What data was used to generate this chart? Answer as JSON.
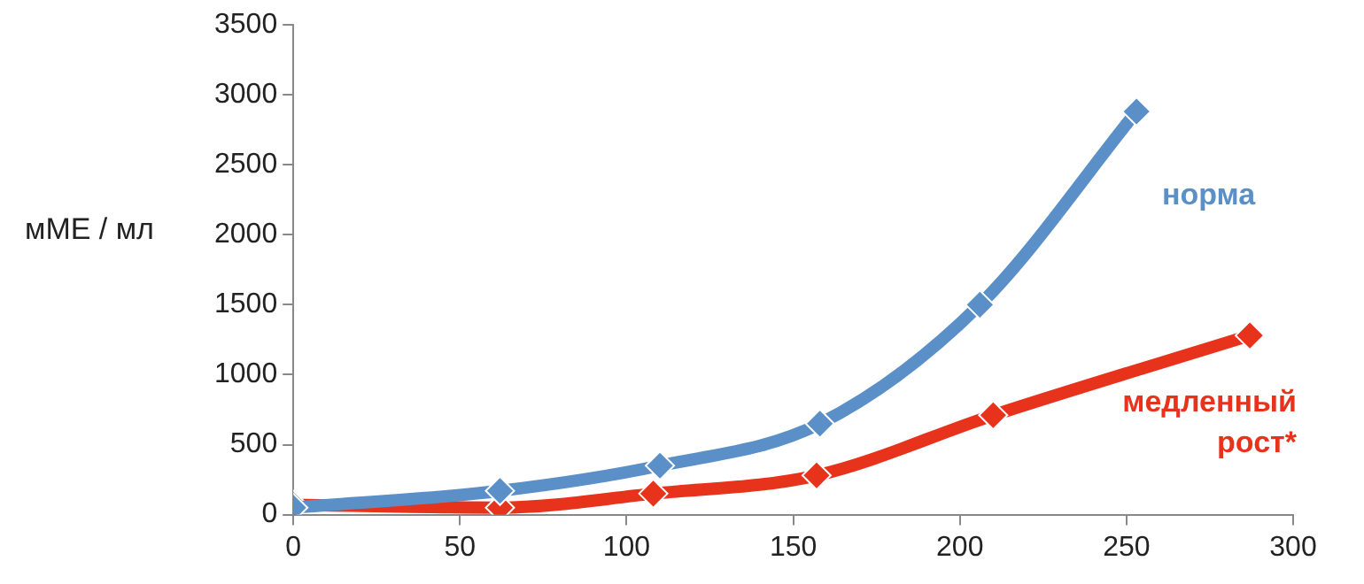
{
  "chart_data": {
    "type": "line",
    "ylabel": "мМЕ / мл",
    "xlim": [
      0,
      300
    ],
    "xticks": [
      0,
      50,
      100,
      150,
      200,
      250,
      300
    ],
    "ylim": [
      0,
      3500
    ],
    "yticks": [
      0,
      500,
      1000,
      1500,
      2000,
      2500,
      3000,
      3500
    ],
    "grid": false,
    "legend": false,
    "marker": "diamond",
    "line_style": "solid",
    "series": [
      {
        "name": "норма",
        "color": "#5b8fc7",
        "x": [
          0,
          62,
          110,
          158,
          206,
          253
        ],
        "values": [
          50,
          170,
          350,
          650,
          1500,
          2880
        ]
      },
      {
        "name": "медленный рост*",
        "color": "#e8331c",
        "x": [
          0,
          62,
          108,
          157,
          210,
          287
        ],
        "values": [
          70,
          50,
          150,
          280,
          710,
          1280
        ]
      }
    ]
  }
}
